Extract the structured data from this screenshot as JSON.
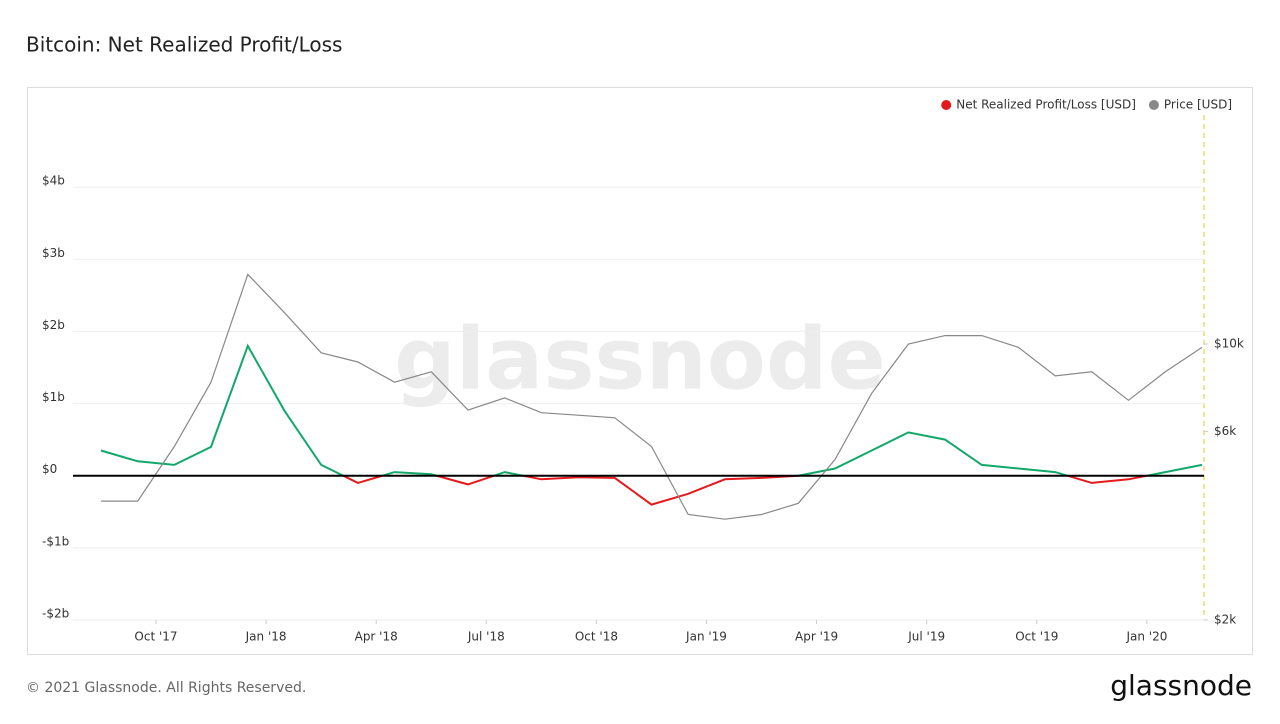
{
  "chart_data": {
    "type": "line",
    "title": "Bitcoin: Net Realized Profit/Loss",
    "watermark": "glassnode",
    "footer": "© 2021 Glassnode. All Rights Reserved.",
    "brand": "glassnode",
    "x": [
      "2017-08",
      "2017-09",
      "2017-10",
      "2017-11",
      "2017-12",
      "2018-01",
      "2018-02",
      "2018-03",
      "2018-04",
      "2018-05",
      "2018-06",
      "2018-07",
      "2018-08",
      "2018-09",
      "2018-10",
      "2018-11",
      "2018-12",
      "2019-01",
      "2019-02",
      "2019-03",
      "2019-04",
      "2019-05",
      "2019-06",
      "2019-07",
      "2019-08",
      "2019-09",
      "2019-10",
      "2019-11",
      "2019-12",
      "2020-01",
      "2020-02"
    ],
    "xticks": [
      {
        "value": "2017-10",
        "label": "Oct '17"
      },
      {
        "value": "2018-01",
        "label": "Jan '18"
      },
      {
        "value": "2018-04",
        "label": "Apr '18"
      },
      {
        "value": "2018-07",
        "label": "Jul '18"
      },
      {
        "value": "2018-10",
        "label": "Oct '18"
      },
      {
        "value": "2019-01",
        "label": "Jan '19"
      },
      {
        "value": "2019-04",
        "label": "Apr '19"
      },
      {
        "value": "2019-07",
        "label": "Jul '19"
      },
      {
        "value": "2019-10",
        "label": "Oct '19"
      },
      {
        "value": "2020-01",
        "label": "Jan '20"
      }
    ],
    "ylim": [
      -2,
      5
    ],
    "yticks": [
      {
        "value": -2,
        "label": "-$2b"
      },
      {
        "value": -1,
        "label": "-$1b"
      },
      {
        "value": 0,
        "label": "$0"
      },
      {
        "value": 1,
        "label": "$1b"
      },
      {
        "value": 2,
        "label": "$2b"
      },
      {
        "value": 3,
        "label": "$3b"
      },
      {
        "value": 4,
        "label": "$4b"
      }
    ],
    "y2lim": [
      2000,
      38000
    ],
    "y2_log_scale": true,
    "y2ticks": [
      {
        "value": 2000,
        "label": "$2k"
      },
      {
        "value": 6000,
        "label": "$6k"
      },
      {
        "value": 10000,
        "label": "$10k"
      }
    ],
    "grid": true,
    "legend_position": "top-right",
    "series": [
      {
        "name": "Net Realized Profit/Loss [USD]",
        "color": "#e41a1c",
        "color_positive": "#12a86a",
        "values": [
          0.35,
          0.2,
          0.15,
          0.4,
          1.8,
          0.9,
          0.15,
          -0.1,
          0.05,
          0.02,
          -0.12,
          0.05,
          -0.05,
          -0.02,
          -0.03,
          -0.4,
          -0.25,
          -0.05,
          -0.03,
          0.0,
          0.1,
          0.35,
          0.6,
          0.5,
          0.15,
          0.1,
          0.05,
          -0.1,
          -0.05,
          0.05,
          0.15
        ]
      },
      {
        "name": "Price [USD]",
        "color": "#888888",
        "axis": "y2",
        "values": [
          4000,
          4000,
          5500,
          8000,
          15000,
          12000,
          9500,
          9000,
          8000,
          8500,
          6800,
          7300,
          6700,
          6600,
          6500,
          5500,
          3700,
          3600,
          3700,
          3950,
          5100,
          7500,
          10000,
          10500,
          10500,
          9800,
          8300,
          8500,
          7200,
          8500,
          9800
        ]
      }
    ]
  }
}
